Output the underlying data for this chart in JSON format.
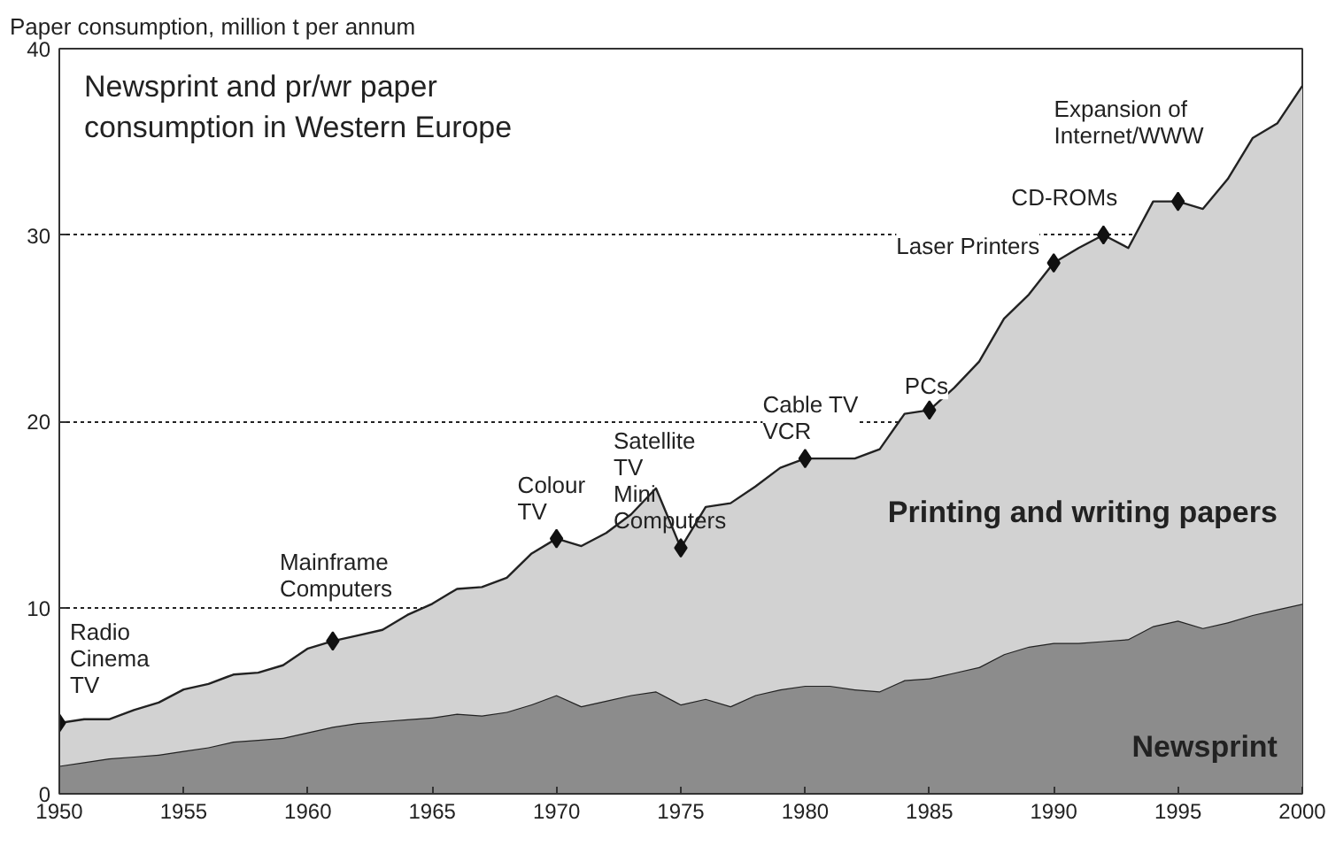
{
  "chart_data": {
    "type": "area",
    "stacked": true,
    "title": "Newsprint and pr/wr paper\nconsumption in Western Europe",
    "ylabel": "Paper consumption, million t per annum",
    "x": [
      1950,
      1951,
      1952,
      1953,
      1954,
      1955,
      1956,
      1957,
      1958,
      1959,
      1960,
      1961,
      1962,
      1963,
      1964,
      1965,
      1966,
      1967,
      1968,
      1969,
      1970,
      1971,
      1972,
      1973,
      1974,
      1975,
      1976,
      1977,
      1978,
      1979,
      1980,
      1981,
      1982,
      1983,
      1984,
      1985,
      1986,
      1987,
      1988,
      1989,
      1990,
      1991,
      1992,
      1993,
      1994,
      1995,
      1996,
      1997,
      1998,
      1999,
      2000
    ],
    "series": [
      {
        "name": "Newsprint",
        "color": "#8c8c8c",
        "values": [
          1.5,
          1.7,
          1.9,
          2.0,
          2.1,
          2.3,
          2.5,
          2.8,
          2.9,
          3.0,
          3.3,
          3.6,
          3.8,
          3.9,
          4.0,
          4.1,
          4.3,
          4.2,
          4.4,
          4.8,
          5.3,
          4.7,
          5.0,
          5.3,
          5.5,
          4.8,
          5.1,
          4.7,
          5.3,
          5.6,
          5.8,
          5.8,
          5.6,
          5.5,
          6.1,
          6.2,
          6.5,
          6.8,
          7.5,
          7.9,
          8.1,
          8.1,
          8.2,
          8.3,
          9.0,
          9.3,
          8.9,
          9.2,
          9.6,
          9.9,
          10.2
        ]
      },
      {
        "name": "Printing and writing papers",
        "color": "#d2d2d2",
        "values": [
          2.3,
          2.3,
          2.1,
          2.5,
          2.8,
          3.3,
          3.4,
          3.6,
          3.6,
          3.9,
          4.5,
          4.6,
          4.7,
          4.9,
          5.6,
          6.1,
          6.7,
          6.9,
          7.2,
          8.1,
          8.4,
          8.6,
          9.0,
          9.7,
          10.9,
          8.4,
          10.3,
          10.9,
          11.2,
          11.9,
          12.2,
          12.2,
          12.4,
          13.0,
          14.3,
          14.4,
          15.3,
          16.4,
          18.0,
          18.9,
          20.4,
          21.2,
          21.8,
          21.0,
          22.8,
          22.5,
          22.5,
          23.8,
          25.6,
          26.1,
          27.8
        ]
      }
    ],
    "xlim": [
      1950,
      2000
    ],
    "xticks": [
      1950,
      1955,
      1960,
      1965,
      1970,
      1975,
      1980,
      1985,
      1990,
      1995,
      2000
    ],
    "ylim": [
      0,
      40
    ],
    "yticks": [
      0,
      10,
      20,
      30,
      40
    ],
    "grid": "y",
    "annotations": [
      {
        "text": "Radio\nCinema\nTV",
        "x": 1950,
        "y": 3.8
      },
      {
        "text": "Mainframe\nComputers",
        "x": 1961,
        "y": 8.2
      },
      {
        "text": "Colour\nTV",
        "x": 1970,
        "y": 13.7
      },
      {
        "text": "Satellite\nTV\nMini\nComputers",
        "x": 1975,
        "y": 13.2
      },
      {
        "text": "Cable TV\nVCR",
        "x": 1980,
        "y": 18.0
      },
      {
        "text": "PCs",
        "x": 1985,
        "y": 20.6
      },
      {
        "text": "Laser Printers",
        "x": 1990,
        "y": 28.5
      },
      {
        "text": "CD-ROMs",
        "x": 1992,
        "y": 30.0
      },
      {
        "text": "Expansion of\nInternet/WWW",
        "x": 1995,
        "y": 31.8
      }
    ]
  }
}
